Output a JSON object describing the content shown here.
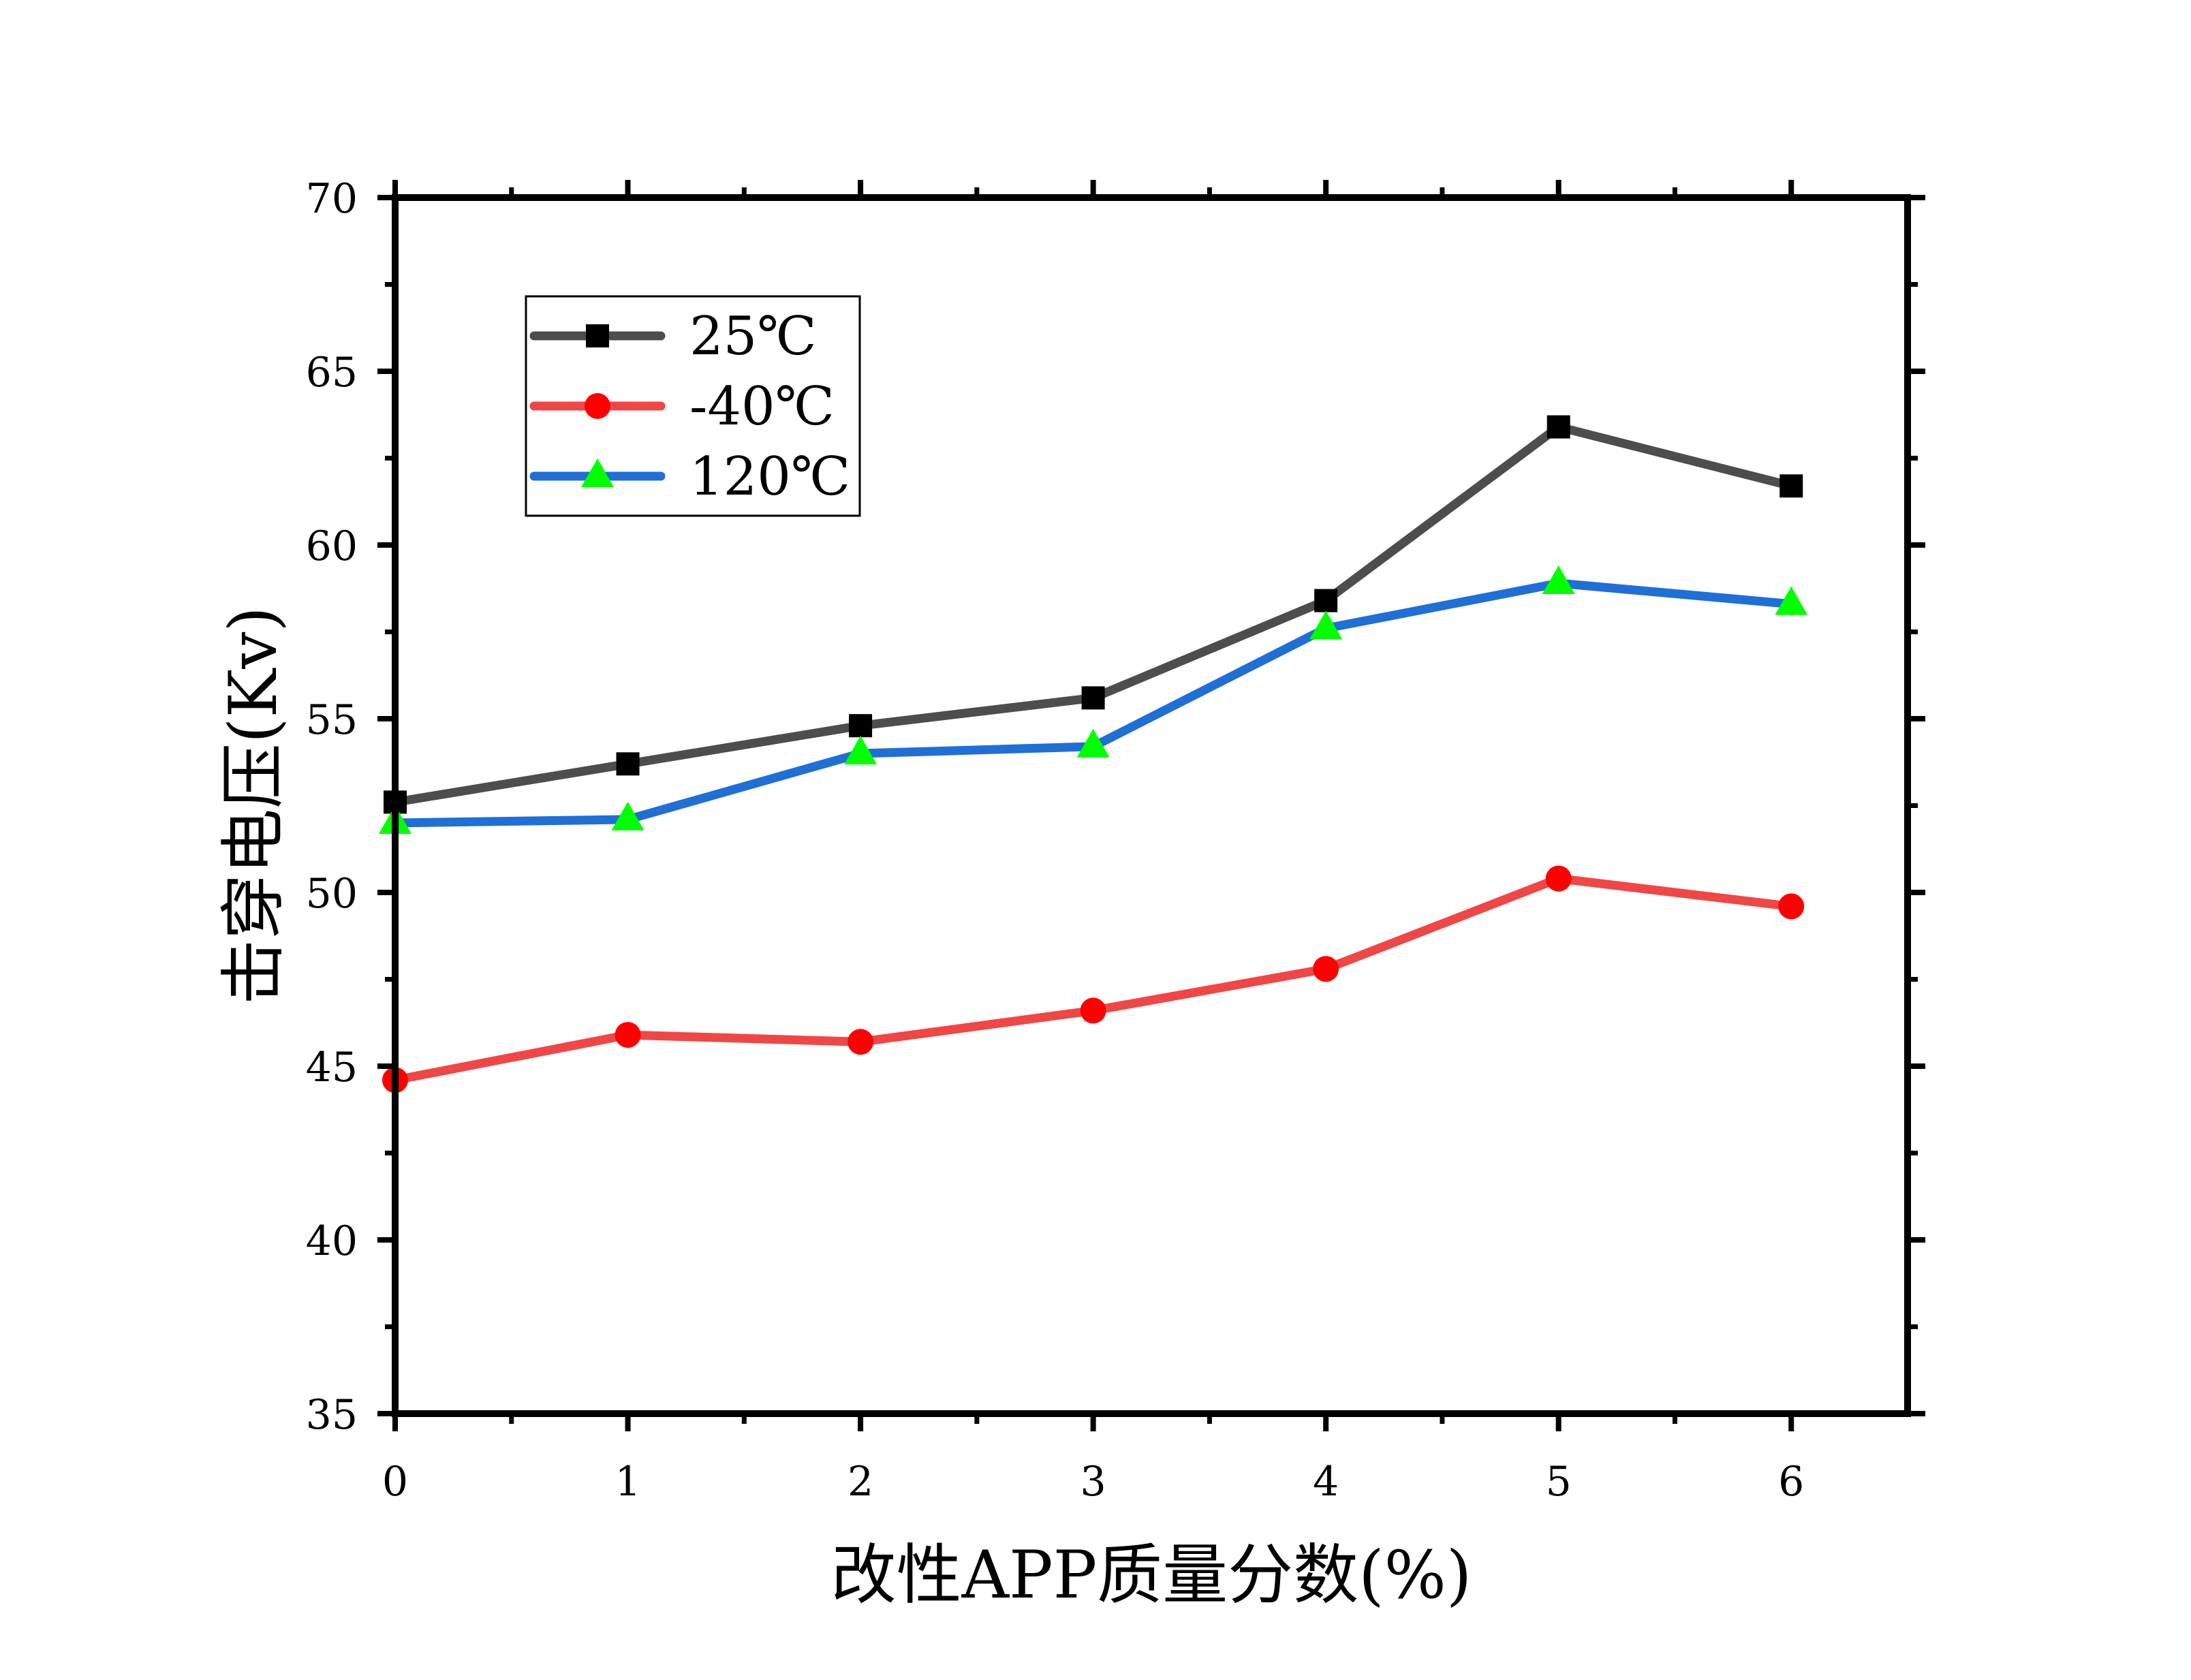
{
  "chart_data": {
    "type": "line",
    "title": "",
    "xlabel": "改性APP质量分数(%)",
    "ylabel": "击穿电压(Kv)",
    "x": [
      0,
      1,
      2,
      3,
      4,
      5,
      6
    ],
    "xlim": [
      0,
      6.5
    ],
    "ylim": [
      35,
      70
    ],
    "xticks": [
      0,
      1,
      2,
      3,
      4,
      5,
      6
    ],
    "xtick_labels": [
      "0",
      "1",
      "2",
      "3",
      "4",
      "5",
      "6"
    ],
    "yticks": [
      35,
      40,
      45,
      50,
      55,
      60,
      65,
      70
    ],
    "ytick_labels": [
      "35",
      "40",
      "45",
      "50",
      "55",
      "60",
      "65",
      "70"
    ],
    "grid": false,
    "legend_position": "top-left",
    "series": [
      {
        "name": "25℃",
        "values": [
          52.6,
          53.7,
          54.8,
          55.6,
          58.4,
          63.4,
          61.7
        ],
        "line_color": "#4d4d4d",
        "marker": "square",
        "marker_color": "#000000"
      },
      {
        "name": "-40℃",
        "values": [
          44.6,
          45.9,
          45.7,
          46.6,
          47.8,
          50.4,
          49.6
        ],
        "line_color": "#f04646",
        "marker": "circle",
        "marker_color": "#ff0000"
      },
      {
        "name": "120℃",
        "values": [
          52.0,
          52.1,
          54.0,
          54.2,
          57.6,
          58.9,
          58.3
        ],
        "line_color": "#1f6fd6",
        "marker": "triangle",
        "marker_color": "#00ff00"
      }
    ]
  }
}
